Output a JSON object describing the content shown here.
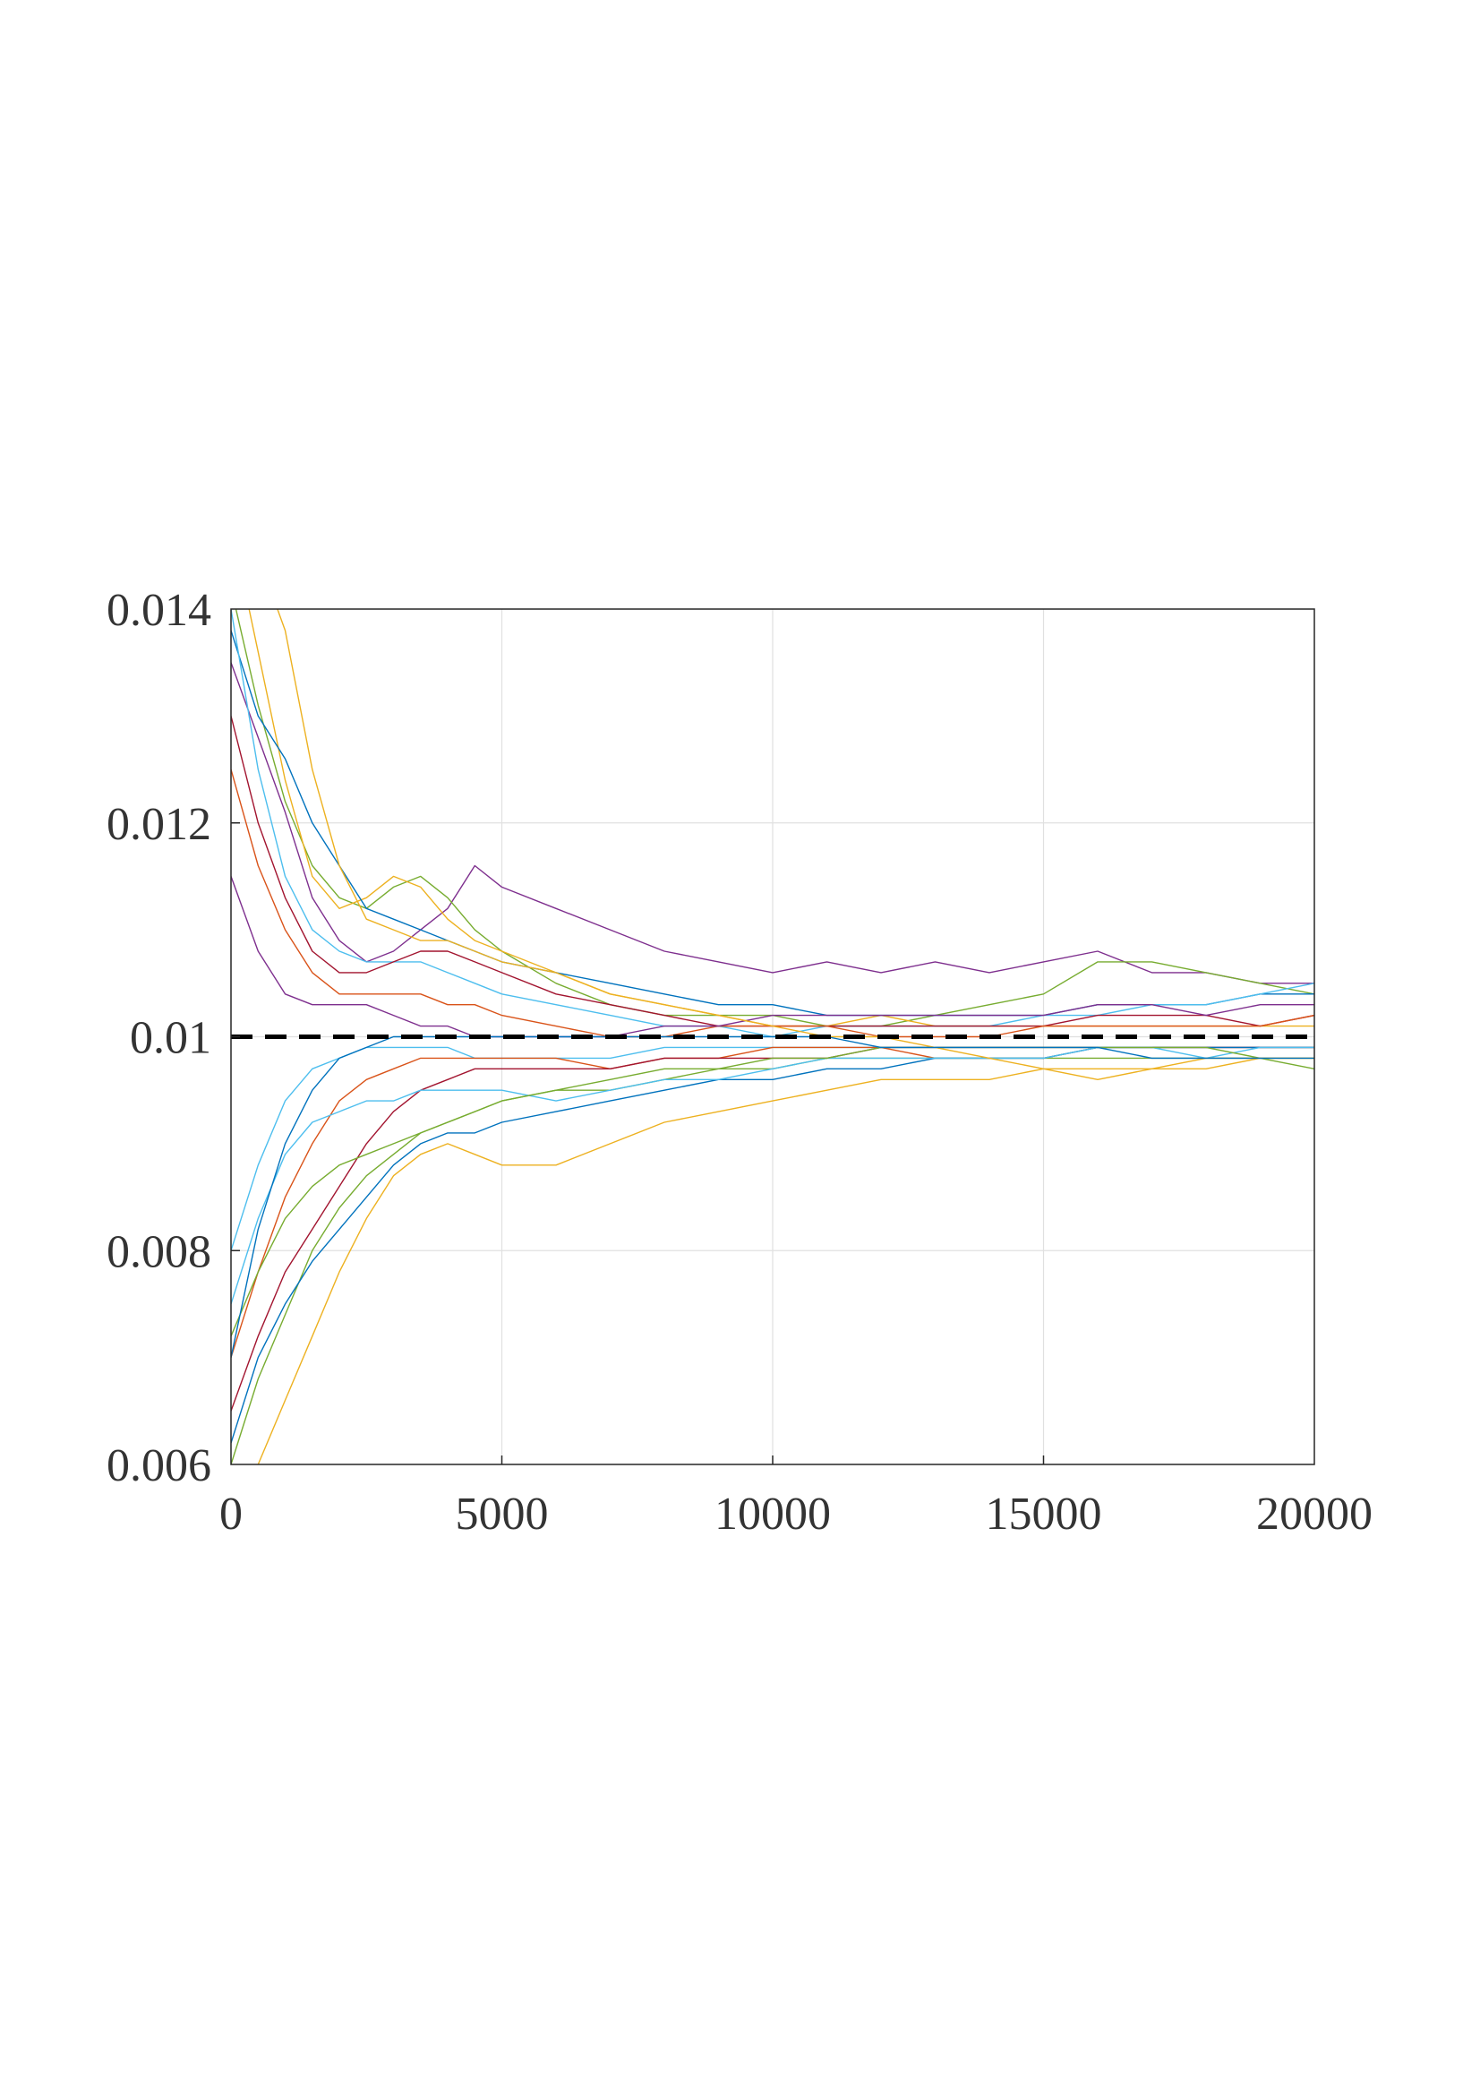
{
  "chart_data": {
    "type": "line",
    "title": "",
    "xlabel": "",
    "ylabel": "",
    "xlim": [
      0,
      20000
    ],
    "ylim": [
      0.006,
      0.014
    ],
    "x_ticks": [
      0,
      5000,
      10000,
      15000,
      20000
    ],
    "x_tick_labels": [
      "0",
      "5000",
      "10000",
      "15000",
      "20000"
    ],
    "y_ticks": [
      0.006,
      0.008,
      0.01,
      0.012,
      0.014
    ],
    "y_tick_labels": [
      "0.006",
      "0.008",
      "0.01",
      "0.012",
      "0.014"
    ],
    "grid": true,
    "legend": "none",
    "reference_line": {
      "y": 0.01,
      "style": "dashed",
      "color": "#000000"
    },
    "series": [
      {
        "color": "#7E2F8E",
        "x": [
          0,
          500,
          1000,
          1500,
          2000,
          2500,
          3000,
          3500,
          4000,
          4500,
          5000,
          6000,
          7000,
          8000,
          9000,
          10000,
          11000,
          12000,
          13000,
          14000,
          15000,
          16000,
          17000,
          18000,
          19000,
          20000
        ],
        "y": [
          0.0135,
          0.0128,
          0.0121,
          0.0113,
          0.0109,
          0.0107,
          0.0108,
          0.011,
          0.0112,
          0.0116,
          0.0114,
          0.0112,
          0.011,
          0.0108,
          0.0107,
          0.0106,
          0.0107,
          0.0106,
          0.0107,
          0.0106,
          0.0107,
          0.0108,
          0.0106,
          0.0106,
          0.0105,
          0.0105
        ]
      },
      {
        "color": "#77AC30",
        "x": [
          0,
          500,
          1000,
          1500,
          2000,
          2500,
          3000,
          3500,
          4000,
          4500,
          5000,
          6000,
          7000,
          8000,
          9000,
          10000,
          11000,
          12000,
          13000,
          14000,
          15000,
          16000,
          17000,
          18000,
          19000,
          20000
        ],
        "y": [
          0.0142,
          0.0131,
          0.0122,
          0.0116,
          0.0113,
          0.0112,
          0.0114,
          0.0115,
          0.0113,
          0.011,
          0.0108,
          0.0105,
          0.0103,
          0.0102,
          0.0102,
          0.0102,
          0.0101,
          0.0101,
          0.0102,
          0.0103,
          0.0104,
          0.0107,
          0.0107,
          0.0106,
          0.0105,
          0.0104
        ]
      },
      {
        "color": "#EDB120",
        "x": [
          0,
          500,
          1000,
          1500,
          2000,
          2500,
          3000,
          3500,
          4000,
          4500,
          5000,
          6000,
          7000,
          8000,
          9000,
          10000,
          11000,
          12000,
          13000,
          14000,
          15000,
          16000,
          17000,
          18000,
          19000,
          20000
        ],
        "y": [
          0.0148,
          0.0136,
          0.0124,
          0.0115,
          0.0112,
          0.0113,
          0.0115,
          0.0114,
          0.0111,
          0.0109,
          0.0108,
          0.0106,
          0.0104,
          0.0103,
          0.0102,
          0.0101,
          0.0101,
          0.0102,
          0.0101,
          0.0101,
          0.0101,
          0.0101,
          0.0101,
          0.0101,
          0.0101,
          0.0101
        ]
      },
      {
        "color": "#0072BD",
        "x": [
          0,
          500,
          1000,
          1500,
          2000,
          2500,
          3000,
          3500,
          4000,
          4500,
          5000,
          6000,
          7000,
          8000,
          9000,
          10000,
          11000,
          12000,
          13000,
          14000,
          15000,
          16000,
          17000,
          18000,
          19000,
          20000
        ],
        "y": [
          0.0138,
          0.013,
          0.0126,
          0.012,
          0.0116,
          0.0112,
          0.0111,
          0.011,
          0.0109,
          0.0108,
          0.0107,
          0.0106,
          0.0105,
          0.0104,
          0.0103,
          0.0103,
          0.0102,
          0.0102,
          0.0102,
          0.0102,
          0.0102,
          0.0103,
          0.0103,
          0.0103,
          0.0104,
          0.0104
        ]
      },
      {
        "color": "#4DBEEE",
        "x": [
          0,
          500,
          1000,
          1500,
          2000,
          2500,
          3000,
          3500,
          4000,
          4500,
          5000,
          6000,
          7000,
          8000,
          9000,
          10000,
          11000,
          12000,
          13000,
          14000,
          15000,
          16000,
          17000,
          18000,
          19000,
          20000
        ],
        "y": [
          0.014,
          0.0125,
          0.0115,
          0.011,
          0.0108,
          0.0107,
          0.0107,
          0.0107,
          0.0106,
          0.0105,
          0.0104,
          0.0103,
          0.0102,
          0.0101,
          0.0101,
          0.01,
          0.0101,
          0.0101,
          0.0101,
          0.0101,
          0.0102,
          0.0102,
          0.0103,
          0.0103,
          0.0104,
          0.0105
        ]
      },
      {
        "color": "#A2142F",
        "x": [
          0,
          500,
          1000,
          1500,
          2000,
          2500,
          3000,
          3500,
          4000,
          4500,
          5000,
          6000,
          7000,
          8000,
          9000,
          10000,
          11000,
          12000,
          13000,
          14000,
          15000,
          16000,
          17000,
          18000,
          19000,
          20000
        ],
        "y": [
          0.013,
          0.012,
          0.0113,
          0.0108,
          0.0106,
          0.0106,
          0.0107,
          0.0108,
          0.0108,
          0.0107,
          0.0106,
          0.0104,
          0.0103,
          0.0102,
          0.0101,
          0.0101,
          0.0101,
          0.0101,
          0.0101,
          0.0101,
          0.0101,
          0.0102,
          0.0102,
          0.0102,
          0.0101,
          0.0102
        ]
      },
      {
        "color": "#D95319",
        "x": [
          0,
          500,
          1000,
          1500,
          2000,
          2500,
          3000,
          3500,
          4000,
          4500,
          5000,
          6000,
          7000,
          8000,
          9000,
          10000,
          11000,
          12000,
          13000,
          14000,
          15000,
          16000,
          17000,
          18000,
          19000,
          20000
        ],
        "y": [
          0.0125,
          0.0116,
          0.011,
          0.0106,
          0.0104,
          0.0104,
          0.0104,
          0.0104,
          0.0103,
          0.0103,
          0.0102,
          0.0101,
          0.01,
          0.01,
          0.0101,
          0.0101,
          0.0101,
          0.01,
          0.01,
          0.01,
          0.0101,
          0.0101,
          0.0101,
          0.0101,
          0.0101,
          0.0102
        ]
      },
      {
        "color": "#7E2F8E",
        "x": [
          0,
          500,
          1000,
          1500,
          2000,
          2500,
          3000,
          3500,
          4000,
          4500,
          5000,
          6000,
          7000,
          8000,
          9000,
          10000,
          11000,
          12000,
          13000,
          14000,
          15000,
          16000,
          17000,
          18000,
          19000,
          20000
        ],
        "y": [
          0.0115,
          0.0108,
          0.0104,
          0.0103,
          0.0103,
          0.0103,
          0.0102,
          0.0101,
          0.0101,
          0.01,
          0.01,
          0.01,
          0.01,
          0.0101,
          0.0101,
          0.0102,
          0.0102,
          0.0102,
          0.0102,
          0.0102,
          0.0102,
          0.0103,
          0.0103,
          0.0102,
          0.0103,
          0.0103
        ]
      },
      {
        "color": "#4DBEEE",
        "x": [
          0,
          500,
          1000,
          1500,
          2000,
          2500,
          3000,
          3500,
          4000,
          4500,
          5000,
          6000,
          7000,
          8000,
          9000,
          10000,
          11000,
          12000,
          13000,
          14000,
          15000,
          16000,
          17000,
          18000,
          19000,
          20000
        ],
        "y": [
          0.008,
          0.0088,
          0.0094,
          0.0097,
          0.0098,
          0.0099,
          0.0099,
          0.0099,
          0.0099,
          0.0098,
          0.0098,
          0.0098,
          0.0098,
          0.0099,
          0.0099,
          0.0099,
          0.0099,
          0.0099,
          0.0099,
          0.0099,
          0.0099,
          0.0099,
          0.0099,
          0.0099,
          0.0099,
          0.0099
        ]
      },
      {
        "color": "#D95319",
        "x": [
          0,
          500,
          1000,
          1500,
          2000,
          2500,
          3000,
          3500,
          4000,
          4500,
          5000,
          6000,
          7000,
          8000,
          9000,
          10000,
          11000,
          12000,
          13000,
          14000,
          15000,
          16000,
          17000,
          18000,
          19000,
          20000
        ],
        "y": [
          0.007,
          0.0078,
          0.0085,
          0.009,
          0.0094,
          0.0096,
          0.0097,
          0.0098,
          0.0098,
          0.0098,
          0.0098,
          0.0098,
          0.0097,
          0.0098,
          0.0098,
          0.0099,
          0.0099,
          0.0099,
          0.0098,
          0.0098,
          0.0098,
          0.0099,
          0.0099,
          0.0099,
          0.0099,
          0.0099
        ]
      },
      {
        "color": "#A2142F",
        "x": [
          0,
          500,
          1000,
          1500,
          2000,
          2500,
          3000,
          3500,
          4000,
          4500,
          5000,
          6000,
          7000,
          8000,
          9000,
          10000,
          11000,
          12000,
          13000,
          14000,
          15000,
          16000,
          17000,
          18000,
          19000,
          20000
        ],
        "y": [
          0.0065,
          0.0072,
          0.0078,
          0.0082,
          0.0086,
          0.009,
          0.0093,
          0.0095,
          0.0096,
          0.0097,
          0.0097,
          0.0097,
          0.0097,
          0.0098,
          0.0098,
          0.0098,
          0.0098,
          0.0099,
          0.0099,
          0.0099,
          0.0099,
          0.0099,
          0.0099,
          0.0099,
          0.0099,
          0.0099
        ]
      },
      {
        "color": "#77AC30",
        "x": [
          0,
          500,
          1000,
          1500,
          2000,
          2500,
          3000,
          3500,
          4000,
          4500,
          5000,
          6000,
          7000,
          8000,
          9000,
          10000,
          11000,
          12000,
          13000,
          14000,
          15000,
          16000,
          17000,
          18000,
          19000,
          20000
        ],
        "y": [
          0.006,
          0.0068,
          0.0074,
          0.008,
          0.0084,
          0.0087,
          0.0089,
          0.0091,
          0.0092,
          0.0093,
          0.0094,
          0.0095,
          0.0095,
          0.0096,
          0.0097,
          0.0097,
          0.0098,
          0.0098,
          0.0098,
          0.0098,
          0.0098,
          0.0098,
          0.0098,
          0.0098,
          0.0098,
          0.0098
        ]
      },
      {
        "color": "#0072BD",
        "x": [
          0,
          500,
          1000,
          1500,
          2000,
          2500,
          3000,
          3500,
          4000,
          4500,
          5000,
          6000,
          7000,
          8000,
          9000,
          10000,
          11000,
          12000,
          13000,
          14000,
          15000,
          16000,
          17000,
          18000,
          19000,
          20000
        ],
        "y": [
          0.0062,
          0.007,
          0.0075,
          0.0079,
          0.0082,
          0.0085,
          0.0088,
          0.009,
          0.0091,
          0.0091,
          0.0092,
          0.0093,
          0.0094,
          0.0095,
          0.0096,
          0.0096,
          0.0097,
          0.0097,
          0.0098,
          0.0098,
          0.0098,
          0.0099,
          0.0099,
          0.0099,
          0.0099,
          0.0099
        ]
      },
      {
        "color": "#EDB120",
        "x": [
          0,
          500,
          1000,
          1500,
          2000,
          2500,
          3000,
          3500,
          4000,
          4500,
          5000,
          6000,
          7000,
          8000,
          9000,
          10000,
          11000,
          12000,
          13000,
          14000,
          15000,
          16000,
          17000,
          18000,
          19000,
          20000
        ],
        "y": [
          0.0058,
          0.006,
          0.0066,
          0.0072,
          0.0078,
          0.0083,
          0.0087,
          0.0089,
          0.009,
          0.0089,
          0.0088,
          0.0088,
          0.009,
          0.0092,
          0.0093,
          0.0094,
          0.0095,
          0.0096,
          0.0096,
          0.0096,
          0.0097,
          0.0096,
          0.0097,
          0.0097,
          0.0098,
          0.0098
        ]
      },
      {
        "color": "#4DBEEE",
        "x": [
          0,
          500,
          1000,
          1500,
          2000,
          2500,
          3000,
          3500,
          4000,
          4500,
          5000,
          6000,
          7000,
          8000,
          9000,
          10000,
          11000,
          12000,
          13000,
          14000,
          15000,
          16000,
          17000,
          18000,
          19000,
          20000
        ],
        "y": [
          0.0075,
          0.0083,
          0.0089,
          0.0092,
          0.0093,
          0.0094,
          0.0094,
          0.0095,
          0.0095,
          0.0095,
          0.0095,
          0.0094,
          0.0095,
          0.0096,
          0.0096,
          0.0097,
          0.0098,
          0.0098,
          0.0098,
          0.0098,
          0.0098,
          0.0099,
          0.0099,
          0.0098,
          0.0099,
          0.0099
        ]
      },
      {
        "color": "#77AC30",
        "x": [
          0,
          500,
          1000,
          1500,
          2000,
          2500,
          3000,
          3500,
          4000,
          4500,
          5000,
          6000,
          7000,
          8000,
          9000,
          10000,
          11000,
          12000,
          13000,
          14000,
          15000,
          16000,
          17000,
          18000,
          19000,
          20000
        ],
        "y": [
          0.0072,
          0.0078,
          0.0083,
          0.0086,
          0.0088,
          0.0089,
          0.009,
          0.0091,
          0.0092,
          0.0093,
          0.0094,
          0.0095,
          0.0096,
          0.0097,
          0.0097,
          0.0098,
          0.0098,
          0.0099,
          0.0099,
          0.0099,
          0.0099,
          0.0099,
          0.0099,
          0.0099,
          0.0098,
          0.0097
        ]
      },
      {
        "color": "#EDB120",
        "x": [
          0,
          500,
          1000,
          1500,
          2000,
          2500,
          3000,
          3500,
          4000,
          4500,
          5000,
          6000,
          7000,
          8000,
          9000,
          10000,
          11000,
          12000,
          13000,
          14000,
          15000,
          16000,
          17000,
          18000,
          19000,
          20000
        ],
        "y": [
          0.015,
          0.0145,
          0.0138,
          0.0125,
          0.0116,
          0.0111,
          0.011,
          0.0109,
          0.0109,
          0.0108,
          0.0107,
          0.0106,
          0.0104,
          0.0103,
          0.0102,
          0.0101,
          0.01,
          0.01,
          0.0099,
          0.0098,
          0.0097,
          0.0097,
          0.0097,
          0.0098,
          0.0098,
          0.0098
        ]
      },
      {
        "color": "#0072BD",
        "x": [
          0,
          500,
          1000,
          1500,
          2000,
          2500,
          3000,
          3500,
          4000,
          4500,
          5000,
          6000,
          7000,
          8000,
          9000,
          10000,
          11000,
          12000,
          13000,
          14000,
          15000,
          16000,
          17000,
          18000,
          19000,
          20000
        ],
        "y": [
          0.007,
          0.0082,
          0.009,
          0.0095,
          0.0098,
          0.0099,
          0.01,
          0.01,
          0.01,
          0.01,
          0.01,
          0.01,
          0.01,
          0.01,
          0.01,
          0.01,
          0.01,
          0.0099,
          0.0099,
          0.0099,
          0.0099,
          0.0099,
          0.0098,
          0.0098,
          0.0098,
          0.0098
        ]
      }
    ]
  }
}
